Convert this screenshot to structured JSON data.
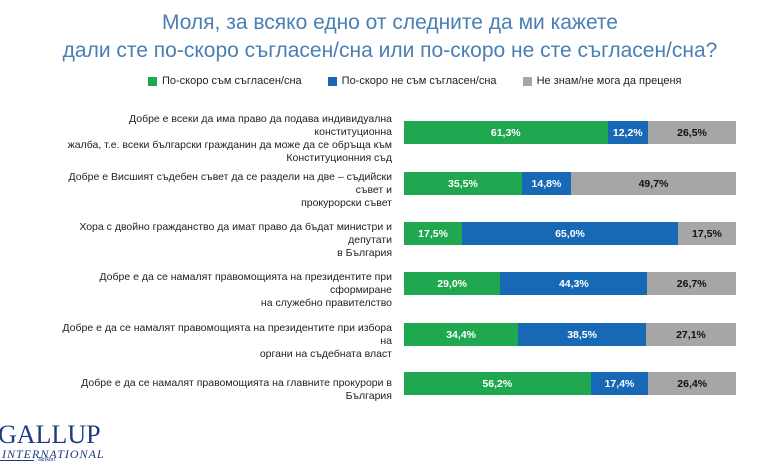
{
  "chart_data": {
    "type": "bar",
    "stacked": true,
    "orientation": "horizontal",
    "title_lines": [
      "Моля, за всяко едно от следните да ми кажете",
      "дали сте по-скоро съгласен/сна или по-скоро не сте съгласен/сна?"
    ],
    "categories": [
      [
        "Добре е всеки да има право да подава индивидуална конституционна",
        "жалба, т.е. всеки български гражданин да може да се обръща към",
        "Конституционния съд"
      ],
      [
        "Добре е Висшият съдебен съвет да се раздели на две – съдийски съвет и",
        "прокурорски съвет"
      ],
      [
        "Хора с двойно гражданство да имат право да бъдат министри и депутати",
        "в България"
      ],
      [
        "Добре е да се намалят правомощията на президентите при сформиране",
        "на служебно правителство"
      ],
      [
        "Добре е да се намалят правомощията на президентите при избора на",
        "органи на съдебната власт"
      ],
      [
        "Добре е да се намалят правомощията на главните прокурори в България"
      ]
    ],
    "series": [
      {
        "name": "По-скоро съм съгласен/сна",
        "color": "#1fa84f",
        "text_color": "#ffffff",
        "values": [
          61.3,
          35.5,
          17.5,
          29.0,
          34.4,
          56.2
        ],
        "labels": [
          "61,3%",
          "35,5%",
          "17,5%",
          "29,0%",
          "34,4%",
          "56,2%"
        ]
      },
      {
        "name": "По-скоро не съм съгласен/сна",
        "color": "#1769b5",
        "text_color": "#ffffff",
        "values": [
          12.2,
          14.8,
          65.0,
          44.3,
          38.5,
          17.4
        ],
        "labels": [
          "12,2%",
          "14,8%",
          "65,0%",
          "44,3%",
          "38,5%",
          "17,4%"
        ]
      },
      {
        "name": "Не знам/не мога да преценя",
        "color": "#a6a6a6",
        "text_color": "#111111",
        "values": [
          26.5,
          49.7,
          17.5,
          26.7,
          27.1,
          26.4
        ],
        "labels": [
          "26,5%",
          "49,7%",
          "17,5%",
          "26,7%",
          "27,1%",
          "26,4%"
        ]
      }
    ],
    "legend_position": "top",
    "grid": false
  },
  "logo": {
    "main": "GALLUP",
    "sub": "INTERNATIONAL",
    "tag": "Balkan"
  }
}
